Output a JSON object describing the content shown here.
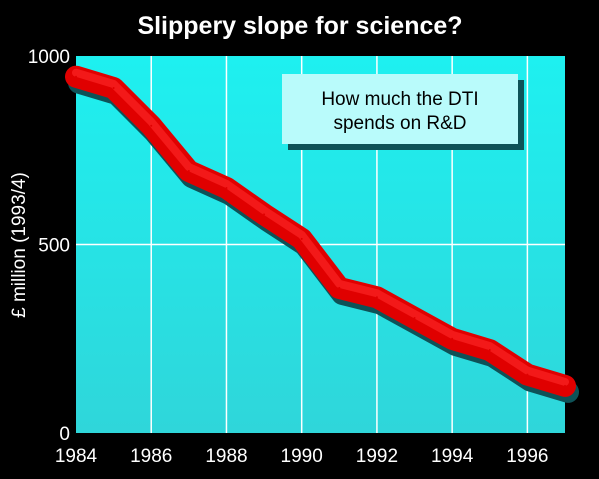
{
  "colors": {
    "background": "#000000",
    "plot_fill_top": "#1ef0f0",
    "plot_fill_bottom": "#2fd6da",
    "gridline": "#ffffff",
    "line_main": "#e00000",
    "line_highlight": "#ff2a2a",
    "line_shadow": "#0e5257",
    "text": "#ffffff",
    "annotation_fill": "#b9fbfb",
    "annotation_text": "#000000"
  },
  "chart_data": {
    "type": "line",
    "title": "Slippery slope for science?",
    "xlabel": "",
    "ylabel": "£ million (1993/4)",
    "xlim": [
      1984,
      1997
    ],
    "ylim": [
      0,
      1000
    ],
    "xticks": [
      "1984",
      "1986",
      "1988",
      "1990",
      "1992",
      "1994",
      "1996"
    ],
    "yticks": [
      "0",
      "500",
      "1000"
    ],
    "grid": true,
    "annotation": [
      "How much the DTI",
      "spends on R&D"
    ],
    "series": [
      {
        "x": [
          1984,
          1985,
          1986,
          1987,
          1988,
          1989,
          1990,
          1991,
          1992,
          1993,
          1994,
          1995,
          1996,
          1997
        ],
        "values": [
          945,
          915,
          815,
          695,
          650,
          580,
          515,
          385,
          360,
          305,
          250,
          220,
          155,
          125
        ]
      }
    ]
  }
}
